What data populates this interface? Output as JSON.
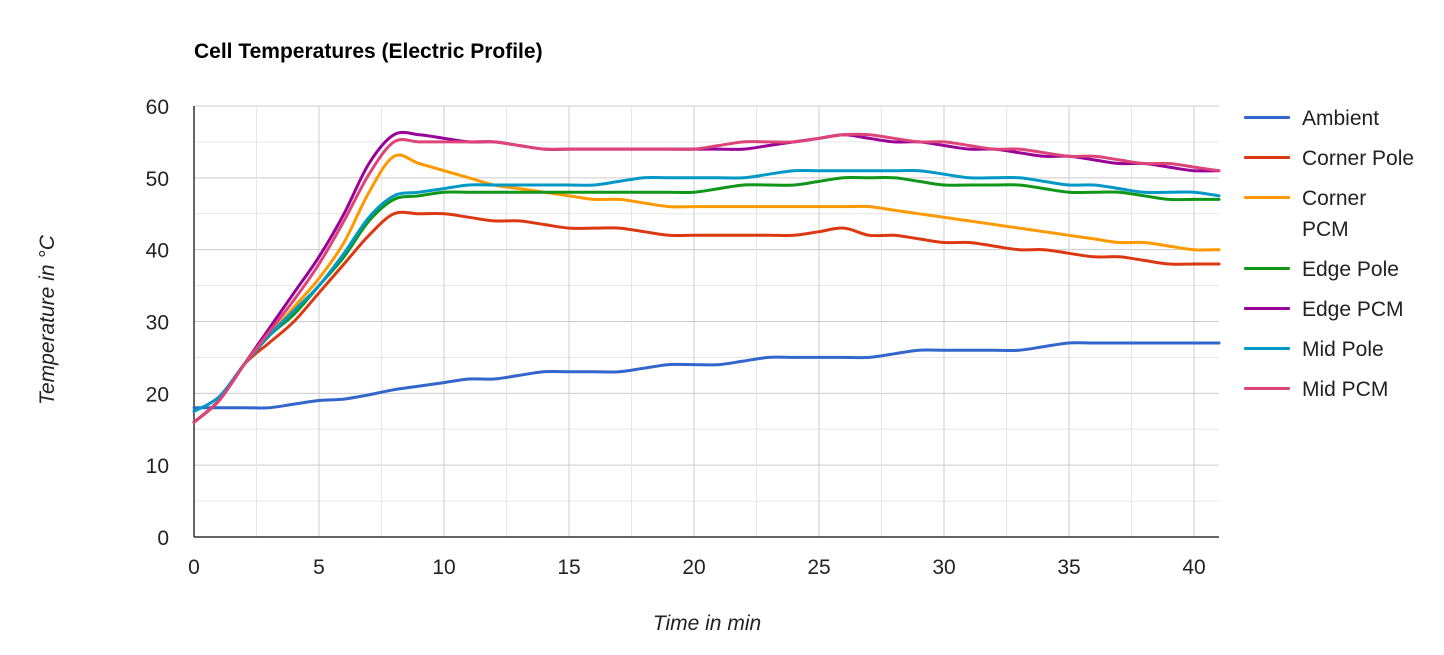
{
  "chart_data": {
    "type": "line",
    "title": "Cell Temperatures (Electric Profile)",
    "xlabel": "Time in min",
    "ylabel": "Temperature in °C",
    "xlim": [
      0,
      41
    ],
    "ylim": [
      0,
      60
    ],
    "x_ticks": [
      0,
      5,
      10,
      15,
      20,
      25,
      30,
      35,
      40
    ],
    "y_ticks": [
      0,
      10,
      20,
      30,
      40,
      50,
      60
    ],
    "grid": true,
    "legend_position": "right",
    "series": [
      {
        "name": "Ambient",
        "color": "#3366cc",
        "x": [
          0,
          1,
          2,
          3,
          4,
          5,
          6,
          7,
          8,
          9,
          10,
          11,
          12,
          13,
          14,
          15,
          16,
          17,
          18,
          19,
          20,
          21,
          22,
          23,
          24,
          25,
          26,
          27,
          28,
          29,
          30,
          31,
          32,
          33,
          34,
          35,
          36,
          37,
          38,
          39,
          40,
          41
        ],
        "y": [
          18,
          18,
          18,
          18,
          18.5,
          19,
          19.2,
          19.8,
          20.5,
          21,
          21.5,
          22,
          22,
          22.5,
          23,
          23,
          23,
          23,
          23.5,
          24,
          24,
          24,
          24.5,
          25,
          25,
          25,
          25,
          25,
          25.5,
          26,
          26,
          26,
          26,
          26,
          26.5,
          27,
          27,
          27,
          27,
          27,
          27,
          27
        ]
      },
      {
        "name": "Corner Pole",
        "color": "#dc3912",
        "x": [
          0,
          1,
          2,
          3,
          4,
          5,
          6,
          7,
          8,
          9,
          10,
          11,
          12,
          13,
          14,
          15,
          16,
          17,
          18,
          19,
          20,
          21,
          22,
          23,
          24,
          25,
          26,
          27,
          28,
          29,
          30,
          31,
          32,
          33,
          34,
          35,
          36,
          37,
          38,
          39,
          40,
          41
        ],
        "y": [
          16,
          19,
          24,
          27,
          30,
          34,
          38,
          42,
          45,
          45,
          45,
          44.5,
          44,
          44,
          43.5,
          43,
          43,
          43,
          42.5,
          42,
          42,
          42,
          42,
          42,
          42,
          42.5,
          43,
          42,
          42,
          41.5,
          41,
          41,
          40.5,
          40,
          40,
          39.5,
          39,
          39,
          38.5,
          38,
          38,
          38
        ]
      },
      {
        "name": "Corner PCM",
        "color": "#ff9900",
        "x": [
          0,
          1,
          2,
          3,
          4,
          5,
          6,
          7,
          8,
          9,
          10,
          11,
          12,
          13,
          14,
          15,
          16,
          17,
          18,
          19,
          20,
          21,
          22,
          23,
          24,
          25,
          26,
          27,
          28,
          29,
          30,
          31,
          32,
          33,
          34,
          35,
          36,
          37,
          38,
          39,
          40,
          41
        ],
        "y": [
          16,
          19,
          24,
          28,
          32,
          36,
          41,
          48,
          53,
          52,
          51,
          50,
          49,
          48.5,
          48,
          47.5,
          47,
          47,
          46.5,
          46,
          46,
          46,
          46,
          46,
          46,
          46,
          46,
          46,
          45.5,
          45,
          44.5,
          44,
          43.5,
          43,
          42.5,
          42,
          41.5,
          41,
          41,
          40.5,
          40,
          40
        ]
      },
      {
        "name": "Edge Pole",
        "color": "#109618",
        "x": [
          0,
          1,
          2,
          3,
          4,
          5,
          6,
          7,
          8,
          9,
          10,
          11,
          12,
          13,
          14,
          15,
          16,
          17,
          18,
          19,
          20,
          21,
          22,
          23,
          24,
          25,
          26,
          27,
          28,
          29,
          30,
          31,
          32,
          33,
          34,
          35,
          36,
          37,
          38,
          39,
          40,
          41
        ],
        "y": [
          16,
          19,
          24,
          28,
          31,
          35,
          39,
          44,
          47,
          47.5,
          48,
          48,
          48,
          48,
          48,
          48,
          48,
          48,
          48,
          48,
          48,
          48.5,
          49,
          49,
          49,
          49.5,
          50,
          50,
          50,
          49.5,
          49,
          49,
          49,
          49,
          48.5,
          48,
          48,
          48,
          47.5,
          47,
          47,
          47
        ]
      },
      {
        "name": "Edge PCM",
        "color": "#990099",
        "x": [
          0,
          1,
          2,
          3,
          4,
          5,
          6,
          7,
          8,
          9,
          10,
          11,
          12,
          13,
          14,
          15,
          16,
          17,
          18,
          19,
          20,
          21,
          22,
          23,
          24,
          25,
          26,
          27,
          28,
          29,
          30,
          31,
          32,
          33,
          34,
          35,
          36,
          37,
          38,
          39,
          40,
          41
        ],
        "y": [
          16,
          19,
          24,
          29,
          34,
          39,
          45,
          52,
          56,
          56,
          55.5,
          55,
          55,
          54.5,
          54,
          54,
          54,
          54,
          54,
          54,
          54,
          54,
          54,
          54.5,
          55,
          55.5,
          56,
          55.5,
          55,
          55,
          54.5,
          54,
          54,
          53.5,
          53,
          53,
          52.5,
          52,
          52,
          51.5,
          51,
          51
        ]
      },
      {
        "name": "Mid Pole",
        "color": "#0099c6",
        "x": [
          0,
          1,
          2,
          3,
          4,
          5,
          6,
          7,
          8,
          9,
          10,
          11,
          12,
          13,
          14,
          15,
          16,
          17,
          18,
          19,
          20,
          21,
          22,
          23,
          24,
          25,
          26,
          27,
          28,
          29,
          30,
          31,
          32,
          33,
          34,
          35,
          36,
          37,
          38,
          39,
          40,
          41
        ],
        "y": [
          17.5,
          19.5,
          24,
          28,
          31.5,
          35,
          39.5,
          44.5,
          47.5,
          48,
          48.5,
          49,
          49,
          49,
          49,
          49,
          49,
          49.5,
          50,
          50,
          50,
          50,
          50,
          50.5,
          51,
          51,
          51,
          51,
          51,
          51,
          50.5,
          50,
          50,
          50,
          49.5,
          49,
          49,
          48.5,
          48,
          48,
          48,
          47.5
        ]
      },
      {
        "name": "Mid PCM",
        "color": "#dd4477",
        "x": [
          0,
          1,
          2,
          3,
          4,
          5,
          6,
          7,
          8,
          9,
          10,
          11,
          12,
          13,
          14,
          15,
          16,
          17,
          18,
          19,
          20,
          21,
          22,
          23,
          24,
          25,
          26,
          27,
          28,
          29,
          30,
          31,
          32,
          33,
          34,
          35,
          36,
          37,
          38,
          39,
          40,
          41
        ],
        "y": [
          16,
          19,
          24,
          28.5,
          33,
          38,
          44,
          50.5,
          55,
          55,
          55,
          55,
          55,
          54.5,
          54,
          54,
          54,
          54,
          54,
          54,
          54,
          54.5,
          55,
          55,
          55,
          55.5,
          56,
          56,
          55.5,
          55,
          55,
          54.5,
          54,
          54,
          53.5,
          53,
          53,
          52.5,
          52,
          52,
          51.5,
          51
        ]
      }
    ]
  }
}
